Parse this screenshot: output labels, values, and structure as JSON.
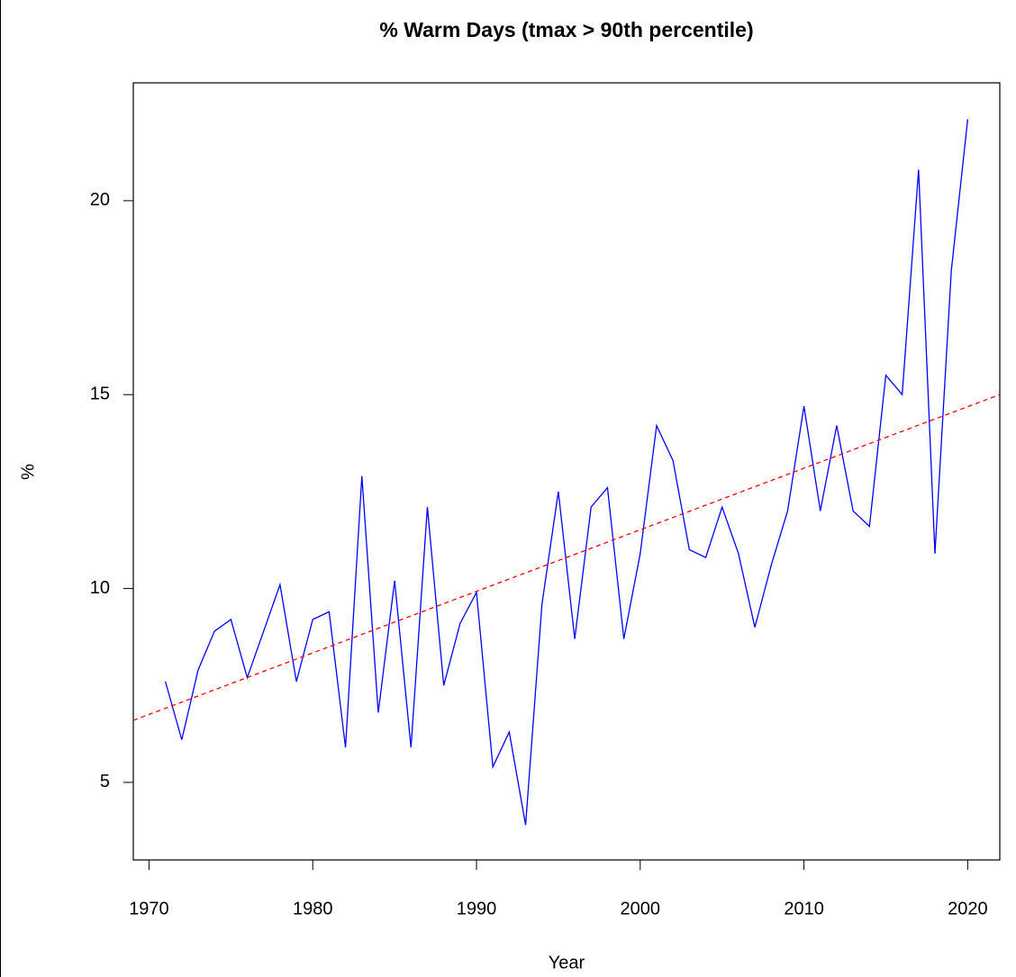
{
  "chart_data": {
    "type": "line",
    "title": "% Warm Days (tmax > 90th percentile)",
    "x_label": "Year",
    "y_label": "%",
    "x": [
      1971,
      1972,
      1973,
      1974,
      1975,
      1976,
      1977,
      1978,
      1979,
      1980,
      1981,
      1982,
      1983,
      1984,
      1985,
      1986,
      1987,
      1988,
      1989,
      1990,
      1991,
      1992,
      1993,
      1994,
      1995,
      1996,
      1997,
      1998,
      1999,
      2000,
      2001,
      2002,
      2003,
      2004,
      2005,
      2006,
      2007,
      2008,
      2009,
      2010,
      2011,
      2012,
      2013,
      2014,
      2015,
      2016,
      2017,
      2018,
      2019,
      2020
    ],
    "series": [
      {
        "color": "#0000ff",
        "values": [
          7.6,
          6.1,
          7.9,
          8.9,
          9.2,
          7.7,
          8.9,
          10.1,
          7.6,
          9.2,
          9.4,
          5.9,
          12.9,
          6.8,
          10.2,
          5.9,
          12.1,
          7.5,
          9.1,
          9.9,
          5.4,
          6.3,
          3.9,
          9.6,
          12.5,
          8.7,
          12.1,
          12.6,
          8.7,
          10.9,
          14.2,
          13.3,
          11.0,
          10.8,
          12.1,
          10.9,
          9.0,
          10.6,
          12.0,
          14.7,
          12.0,
          14.2,
          12.0,
          11.6,
          15.5,
          15.0,
          20.8,
          10.9,
          18.2,
          22.1
        ]
      },
      {
        "color": "#ff0000",
        "dashed": true,
        "x": [
          1969.04,
          2021.96
        ],
        "values": [
          6.6,
          15.0
        ]
      }
    ],
    "xlim": [
      1969.04,
      2021.96
    ],
    "xticks": [
      1970,
      1980,
      1990,
      2000,
      2010,
      2020
    ],
    "ylim": [
      3.0,
      23.04
    ],
    "yticks": [
      5,
      10,
      15,
      20
    ]
  }
}
